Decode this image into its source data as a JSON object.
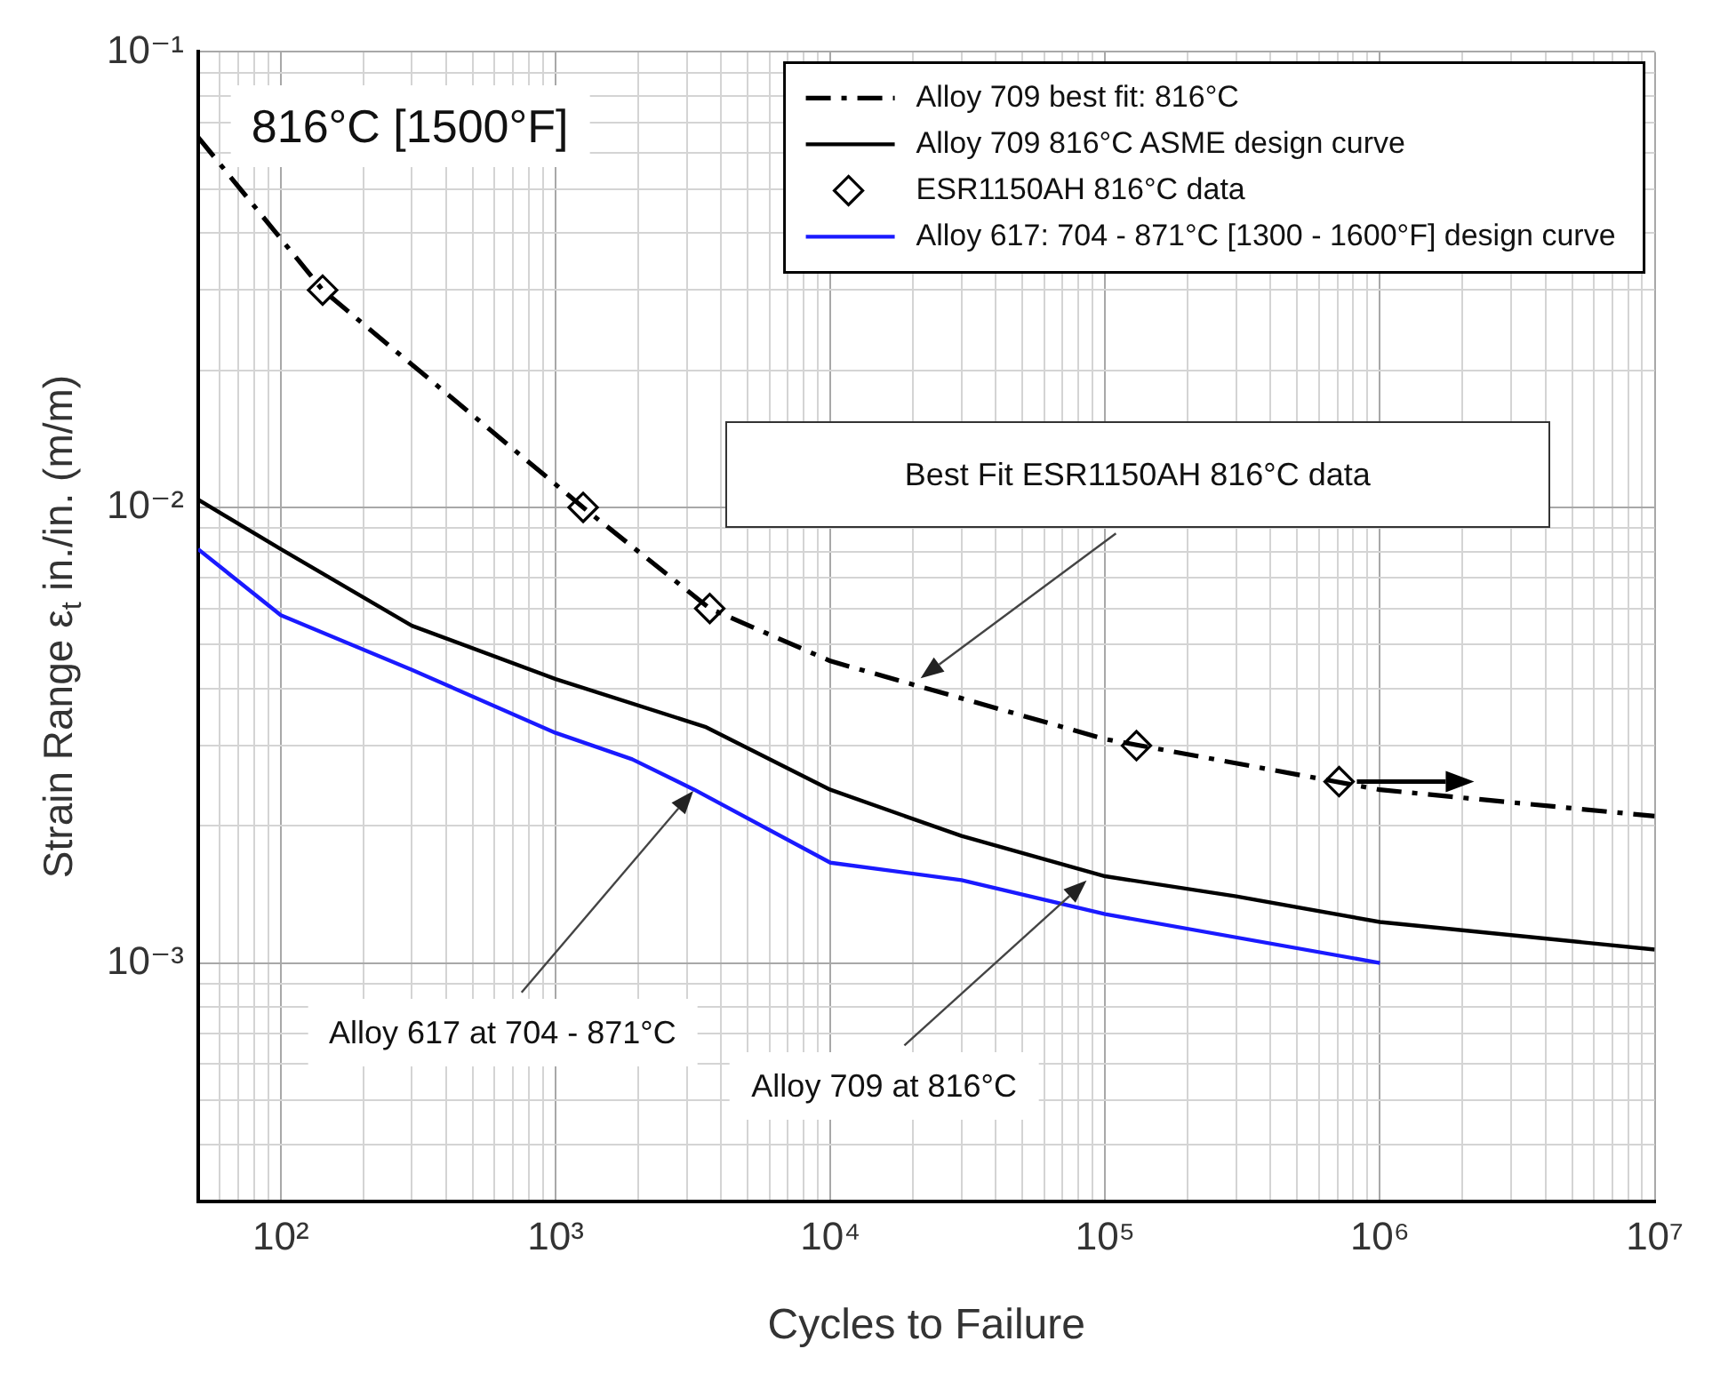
{
  "chart_data": {
    "type": "line",
    "xlabel": "Cycles to Failure",
    "ylabel": "Strain Range ε$_{t}$ in./in. (m/m)",
    "log": "xy",
    "grid": true,
    "legend": "top right",
    "xlim": [
      50,
      10000000.0
    ],
    "ylim": [
      0.0003,
      0.1
    ],
    "xticks": [
      {
        "value": 50,
        "label": null
      },
      {
        "value": 60,
        "label": null
      },
      {
        "value": 70,
        "label": null
      },
      {
        "value": 80,
        "label": null
      },
      {
        "value": 90,
        "label": null
      },
      {
        "value": 100,
        "label": "10²"
      },
      {
        "value": 200,
        "label": null
      },
      {
        "value": 300,
        "label": null
      },
      {
        "value": 400,
        "label": null
      },
      {
        "value": 500,
        "label": null
      },
      {
        "value": 600,
        "label": null
      },
      {
        "value": 700,
        "label": null
      },
      {
        "value": 800,
        "label": null
      },
      {
        "value": 900,
        "label": null
      },
      {
        "value": 1000,
        "label": "10³"
      },
      {
        "value": 2000,
        "label": null
      },
      {
        "value": 3000,
        "label": null
      },
      {
        "value": 4000,
        "label": null
      },
      {
        "value": 5000,
        "label": null
      },
      {
        "value": 6000,
        "label": null
      },
      {
        "value": 7000,
        "label": null
      },
      {
        "value": 8000,
        "label": null
      },
      {
        "value": 9000,
        "label": null
      },
      {
        "value": 10000.0,
        "label": "10⁴"
      },
      {
        "value": 20000.0,
        "label": null
      },
      {
        "value": 30000.0,
        "label": null
      },
      {
        "value": 40000.0,
        "label": null
      },
      {
        "value": 50000.0,
        "label": null
      },
      {
        "value": 60000.0,
        "label": null
      },
      {
        "value": 70000.0,
        "label": null
      },
      {
        "value": 80000.0,
        "label": null
      },
      {
        "value": 90000.0,
        "label": null
      },
      {
        "value": 100000.0,
        "label": "10⁵"
      },
      {
        "value": 200000.0,
        "label": null
      },
      {
        "value": 300000.0,
        "label": null
      },
      {
        "value": 400000.0,
        "label": null
      },
      {
        "value": 500000.0,
        "label": null
      },
      {
        "value": 600000.0,
        "label": null
      },
      {
        "value": 700000.0,
        "label": null
      },
      {
        "value": 800000.0,
        "label": null
      },
      {
        "value": 900000.0,
        "label": null
      },
      {
        "value": 1000000.0,
        "label": "10⁶"
      },
      {
        "value": 2000000.0,
        "label": null
      },
      {
        "value": 3000000.0,
        "label": null
      },
      {
        "value": 4000000.0,
        "label": null
      },
      {
        "value": 5000000.0,
        "label": null
      },
      {
        "value": 6000000.0,
        "label": null
      },
      {
        "value": 7000000.0,
        "label": null
      },
      {
        "value": 8000000.0,
        "label": null
      },
      {
        "value": 9000000.0,
        "label": null
      },
      {
        "value": 10000000.0,
        "label": "10⁷"
      }
    ],
    "yticks": [
      {
        "value": 0.0003,
        "label": null
      },
      {
        "value": 0.0004,
        "label": null
      },
      {
        "value": 0.0005,
        "label": null
      },
      {
        "value": 0.0006,
        "label": null
      },
      {
        "value": 0.0007,
        "label": null
      },
      {
        "value": 0.0008,
        "label": null
      },
      {
        "value": 0.0009,
        "label": null
      },
      {
        "value": 0.001,
        "label": "10⁻³"
      },
      {
        "value": 0.002,
        "label": null
      },
      {
        "value": 0.003,
        "label": null
      },
      {
        "value": 0.004,
        "label": null
      },
      {
        "value": 0.005,
        "label": null
      },
      {
        "value": 0.006,
        "label": null
      },
      {
        "value": 0.007,
        "label": null
      },
      {
        "value": 0.008,
        "label": null
      },
      {
        "value": 0.009,
        "label": null
      },
      {
        "value": 0.01,
        "label": "10⁻²"
      },
      {
        "value": 0.02,
        "label": null
      },
      {
        "value": 0.03,
        "label": null
      },
      {
        "value": 0.04,
        "label": null
      },
      {
        "value": 0.05,
        "label": null
      },
      {
        "value": 0.06,
        "label": null
      },
      {
        "value": 0.07,
        "label": null
      },
      {
        "value": 0.08,
        "label": null
      },
      {
        "value": 0.09,
        "label": null
      },
      {
        "value": 0.1,
        "label": "10⁻¹"
      }
    ],
    "series": [
      {
        "name": "Alloy 709 best fit: 816°C",
        "type": "line",
        "color": "#000000",
        "line_style": "dashdot",
        "x": [
          50,
          142,
          1260,
          3640,
          10000.0,
          100000.0,
          1000000.0,
          10000000.0
        ],
        "values": [
          0.065,
          0.03,
          0.01,
          0.006,
          0.0046,
          0.0031,
          0.0024,
          0.0021
        ]
      },
      {
        "name": "Alloy 709 816°C ASME design curve",
        "type": "line",
        "color": "#000000",
        "line_style": "solid",
        "x": [
          50,
          100,
          300,
          1000,
          3500,
          10000.0,
          30000.0,
          100000.0,
          300000.0,
          1000000.0,
          10000000.0
        ],
        "values": [
          0.0104,
          0.0081,
          0.0055,
          0.0042,
          0.0033,
          0.0024,
          0.0019,
          0.00155,
          0.0014,
          0.00123,
          0.00107
        ]
      },
      {
        "name": "ESR1150AH 816°C data",
        "type": "scatter",
        "color": "#000000",
        "marker": "diamond",
        "x": [
          142,
          1260,
          3640,
          130000.0,
          710000.0
        ],
        "values": [
          0.03,
          0.01,
          0.006,
          0.003,
          0.0025
        ]
      },
      {
        "name": "Alloy 617: 704 - 871°C [1300 - 1600°F] design curve",
        "type": "line",
        "color": "#1a1aff",
        "line_style": "solid",
        "x": [
          50,
          100,
          300,
          1000,
          1900,
          3200,
          10000.0,
          30000.0,
          100000.0,
          1000000.0
        ],
        "values": [
          0.0081,
          0.0058,
          0.0044,
          0.0032,
          0.0028,
          0.0024,
          0.00166,
          0.00152,
          0.00128,
          0.001
        ]
      }
    ],
    "annotations": [
      "816°C [1500°F]",
      "Best Fit ESR1150AH 816°C data",
      "Alloy 617 at 704 - 871°C",
      "Alloy 709 at 816°C"
    ]
  }
}
